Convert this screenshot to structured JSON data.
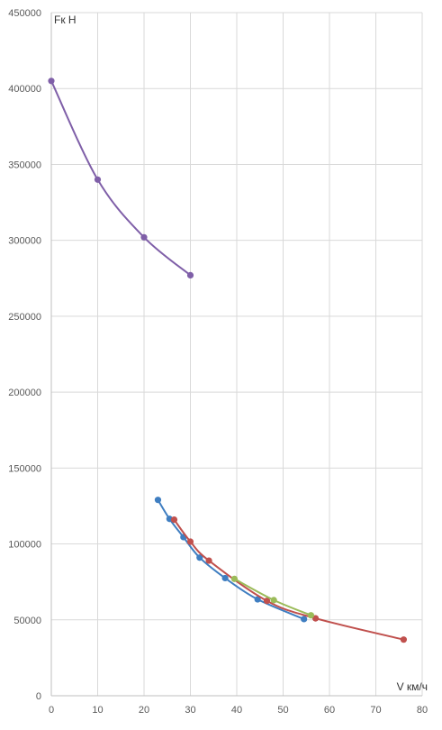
{
  "chart_data": {
    "type": "scatter",
    "mode": "lines+markers",
    "smooth": true,
    "xlabel": "V км/ч",
    "ylabel": "Fк Н",
    "xlim": [
      0,
      80
    ],
    "ylim": [
      0,
      450000
    ],
    "x_ticks": [
      0,
      10,
      20,
      30,
      40,
      50,
      60,
      70,
      80
    ],
    "y_ticks": [
      0,
      50000,
      100000,
      150000,
      200000,
      250000,
      300000,
      350000,
      400000,
      450000
    ],
    "grid": true,
    "legend": "none",
    "series": [
      {
        "color": "#7F5FA8",
        "x": [
          0,
          10,
          20,
          30
        ],
        "y": [
          405000,
          340000,
          302000,
          277000
        ]
      },
      {
        "color": "#3F7EC1",
        "x": [
          23,
          25.5,
          28.5,
          32,
          37.5,
          44.5,
          54.5
        ],
        "y": [
          129000,
          116500,
          104500,
          91000,
          77500,
          63500,
          50500
        ]
      },
      {
        "color": "#C0504D",
        "x": [
          26.5,
          30,
          34,
          46.5,
          57,
          76
        ],
        "y": [
          116000,
          101500,
          89000,
          62500,
          51000,
          37000
        ]
      },
      {
        "color": "#9BBB59",
        "x": [
          39.5,
          48,
          56
        ],
        "y": [
          77000,
          63000,
          53000
        ]
      }
    ]
  }
}
